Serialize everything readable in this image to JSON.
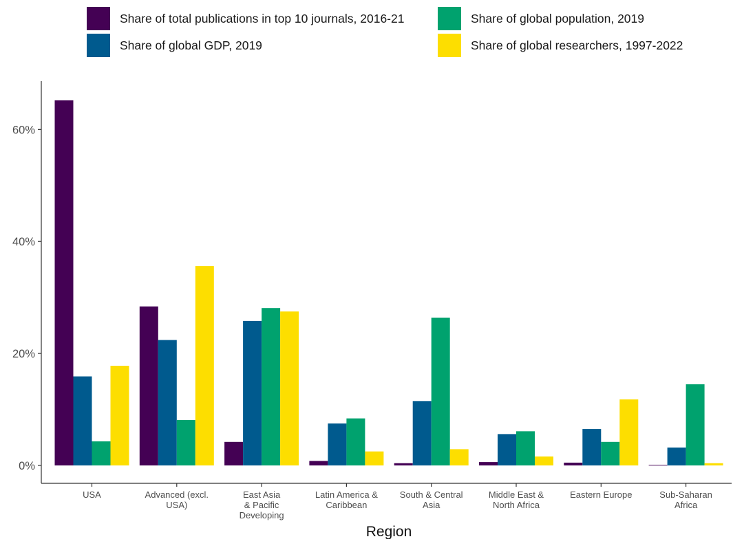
{
  "chart_data": {
    "type": "bar",
    "title": "",
    "xlabel": "Region",
    "ylabel": "",
    "ylim": [
      0,
      65.5
    ],
    "yticks": [
      0,
      20,
      40,
      60
    ],
    "ytick_labels": [
      "0%",
      "20%",
      "40%",
      "60%"
    ],
    "legend_position": "top",
    "grid": false,
    "categories": [
      "USA",
      "Advanced (excl. USA)",
      "East Asia & Pacific Developing",
      "Latin America & Caribbean",
      "South & Central Asia",
      "Middle East & North Africa",
      "Eastern Europe",
      "Sub-Saharan Africa"
    ],
    "category_lines": [
      [
        "USA"
      ],
      [
        "Advanced (excl.",
        "USA)"
      ],
      [
        "East Asia",
        "& Pacific",
        "Developing"
      ],
      [
        "Latin America &",
        "Caribbean"
      ],
      [
        "South & Central",
        "Asia"
      ],
      [
        "Middle East &",
        "North Africa"
      ],
      [
        "Eastern Europe"
      ],
      [
        "Sub-Saharan",
        "Africa"
      ]
    ],
    "series": [
      {
        "name": "Share of total publications in top 10 journals, 2016-21",
        "color": "#440154",
        "values": [
          65.2,
          28.4,
          4.2,
          0.8,
          0.4,
          0.6,
          0.5,
          0.1
        ]
      },
      {
        "name": "Share of global GDP, 2019",
        "color": "#005A8E",
        "values": [
          15.9,
          22.4,
          25.8,
          7.5,
          11.5,
          5.6,
          6.5,
          3.2
        ]
      },
      {
        "name": "Share of global population, 2019",
        "color": "#00A26E",
        "values": [
          4.3,
          8.1,
          28.1,
          8.4,
          26.4,
          6.1,
          4.2,
          14.5
        ]
      },
      {
        "name": "Share of global researchers, 1997-2022",
        "color": "#FDDE00",
        "values": [
          17.8,
          35.6,
          27.5,
          2.5,
          2.9,
          1.6,
          11.8,
          0.4
        ]
      }
    ]
  }
}
